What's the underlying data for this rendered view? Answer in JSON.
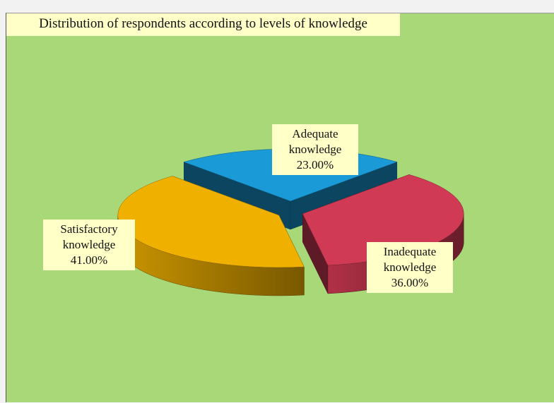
{
  "chart_data": {
    "type": "pie",
    "title": "Distribution of respondents according to levels of knowledge",
    "categories": [
      "Adequate knowledge",
      "Inadequate knowledge",
      "Satisfactory knowledge"
    ],
    "values": [
      23,
      36,
      41
    ],
    "value_labels": [
      "23.00%",
      "36.00%",
      "41.00%"
    ],
    "colors": [
      "#1a9ad6",
      "#d03a54",
      "#f0b000"
    ]
  }
}
